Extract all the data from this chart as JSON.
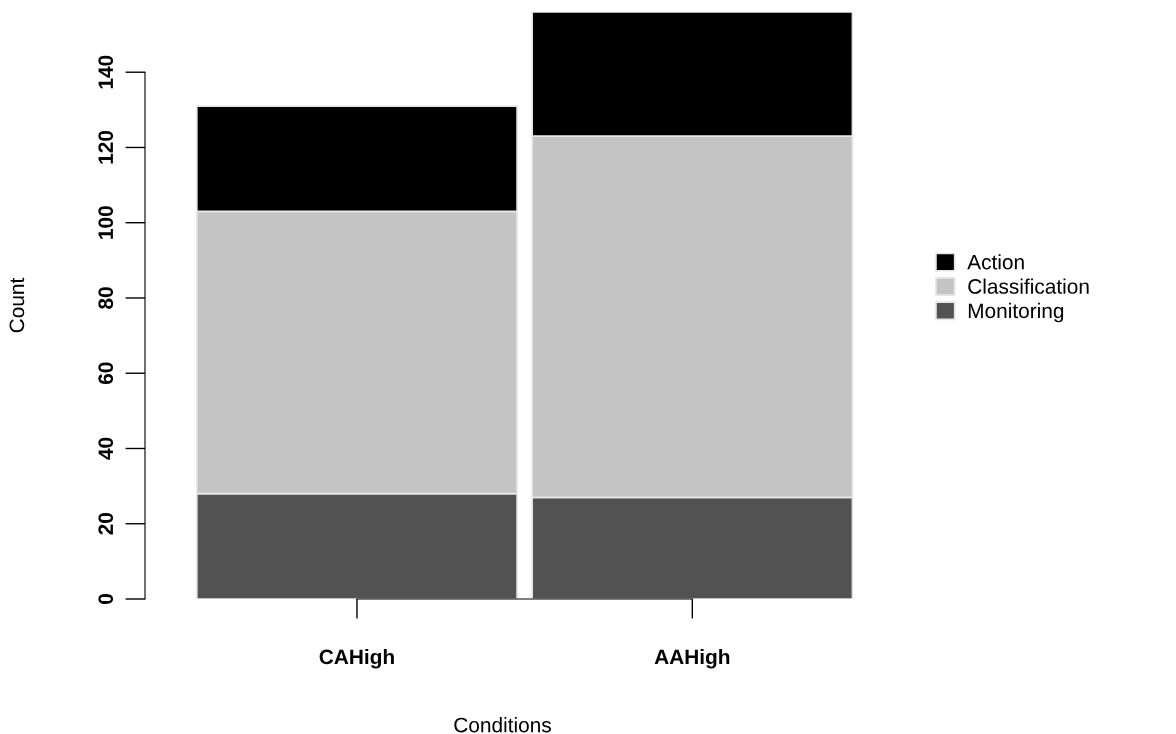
{
  "chart_data": {
    "type": "bar",
    "stacked": true,
    "xlabel": "Conditions",
    "ylabel": "Count",
    "categories": [
      "CAHigh",
      "AAHigh"
    ],
    "series": [
      {
        "name": "Monitoring",
        "color": "#525252",
        "values": [
          28,
          27
        ]
      },
      {
        "name": "Classification",
        "color": "#c4c4c4",
        "values": [
          75,
          96
        ]
      },
      {
        "name": "Action",
        "color": "#000000",
        "values": [
          28,
          33
        ]
      }
    ],
    "ylim": [
      0,
      156
    ],
    "yticks": [
      0,
      20,
      40,
      60,
      80,
      100,
      120,
      140
    ],
    "grid": false,
    "legend": "right"
  }
}
